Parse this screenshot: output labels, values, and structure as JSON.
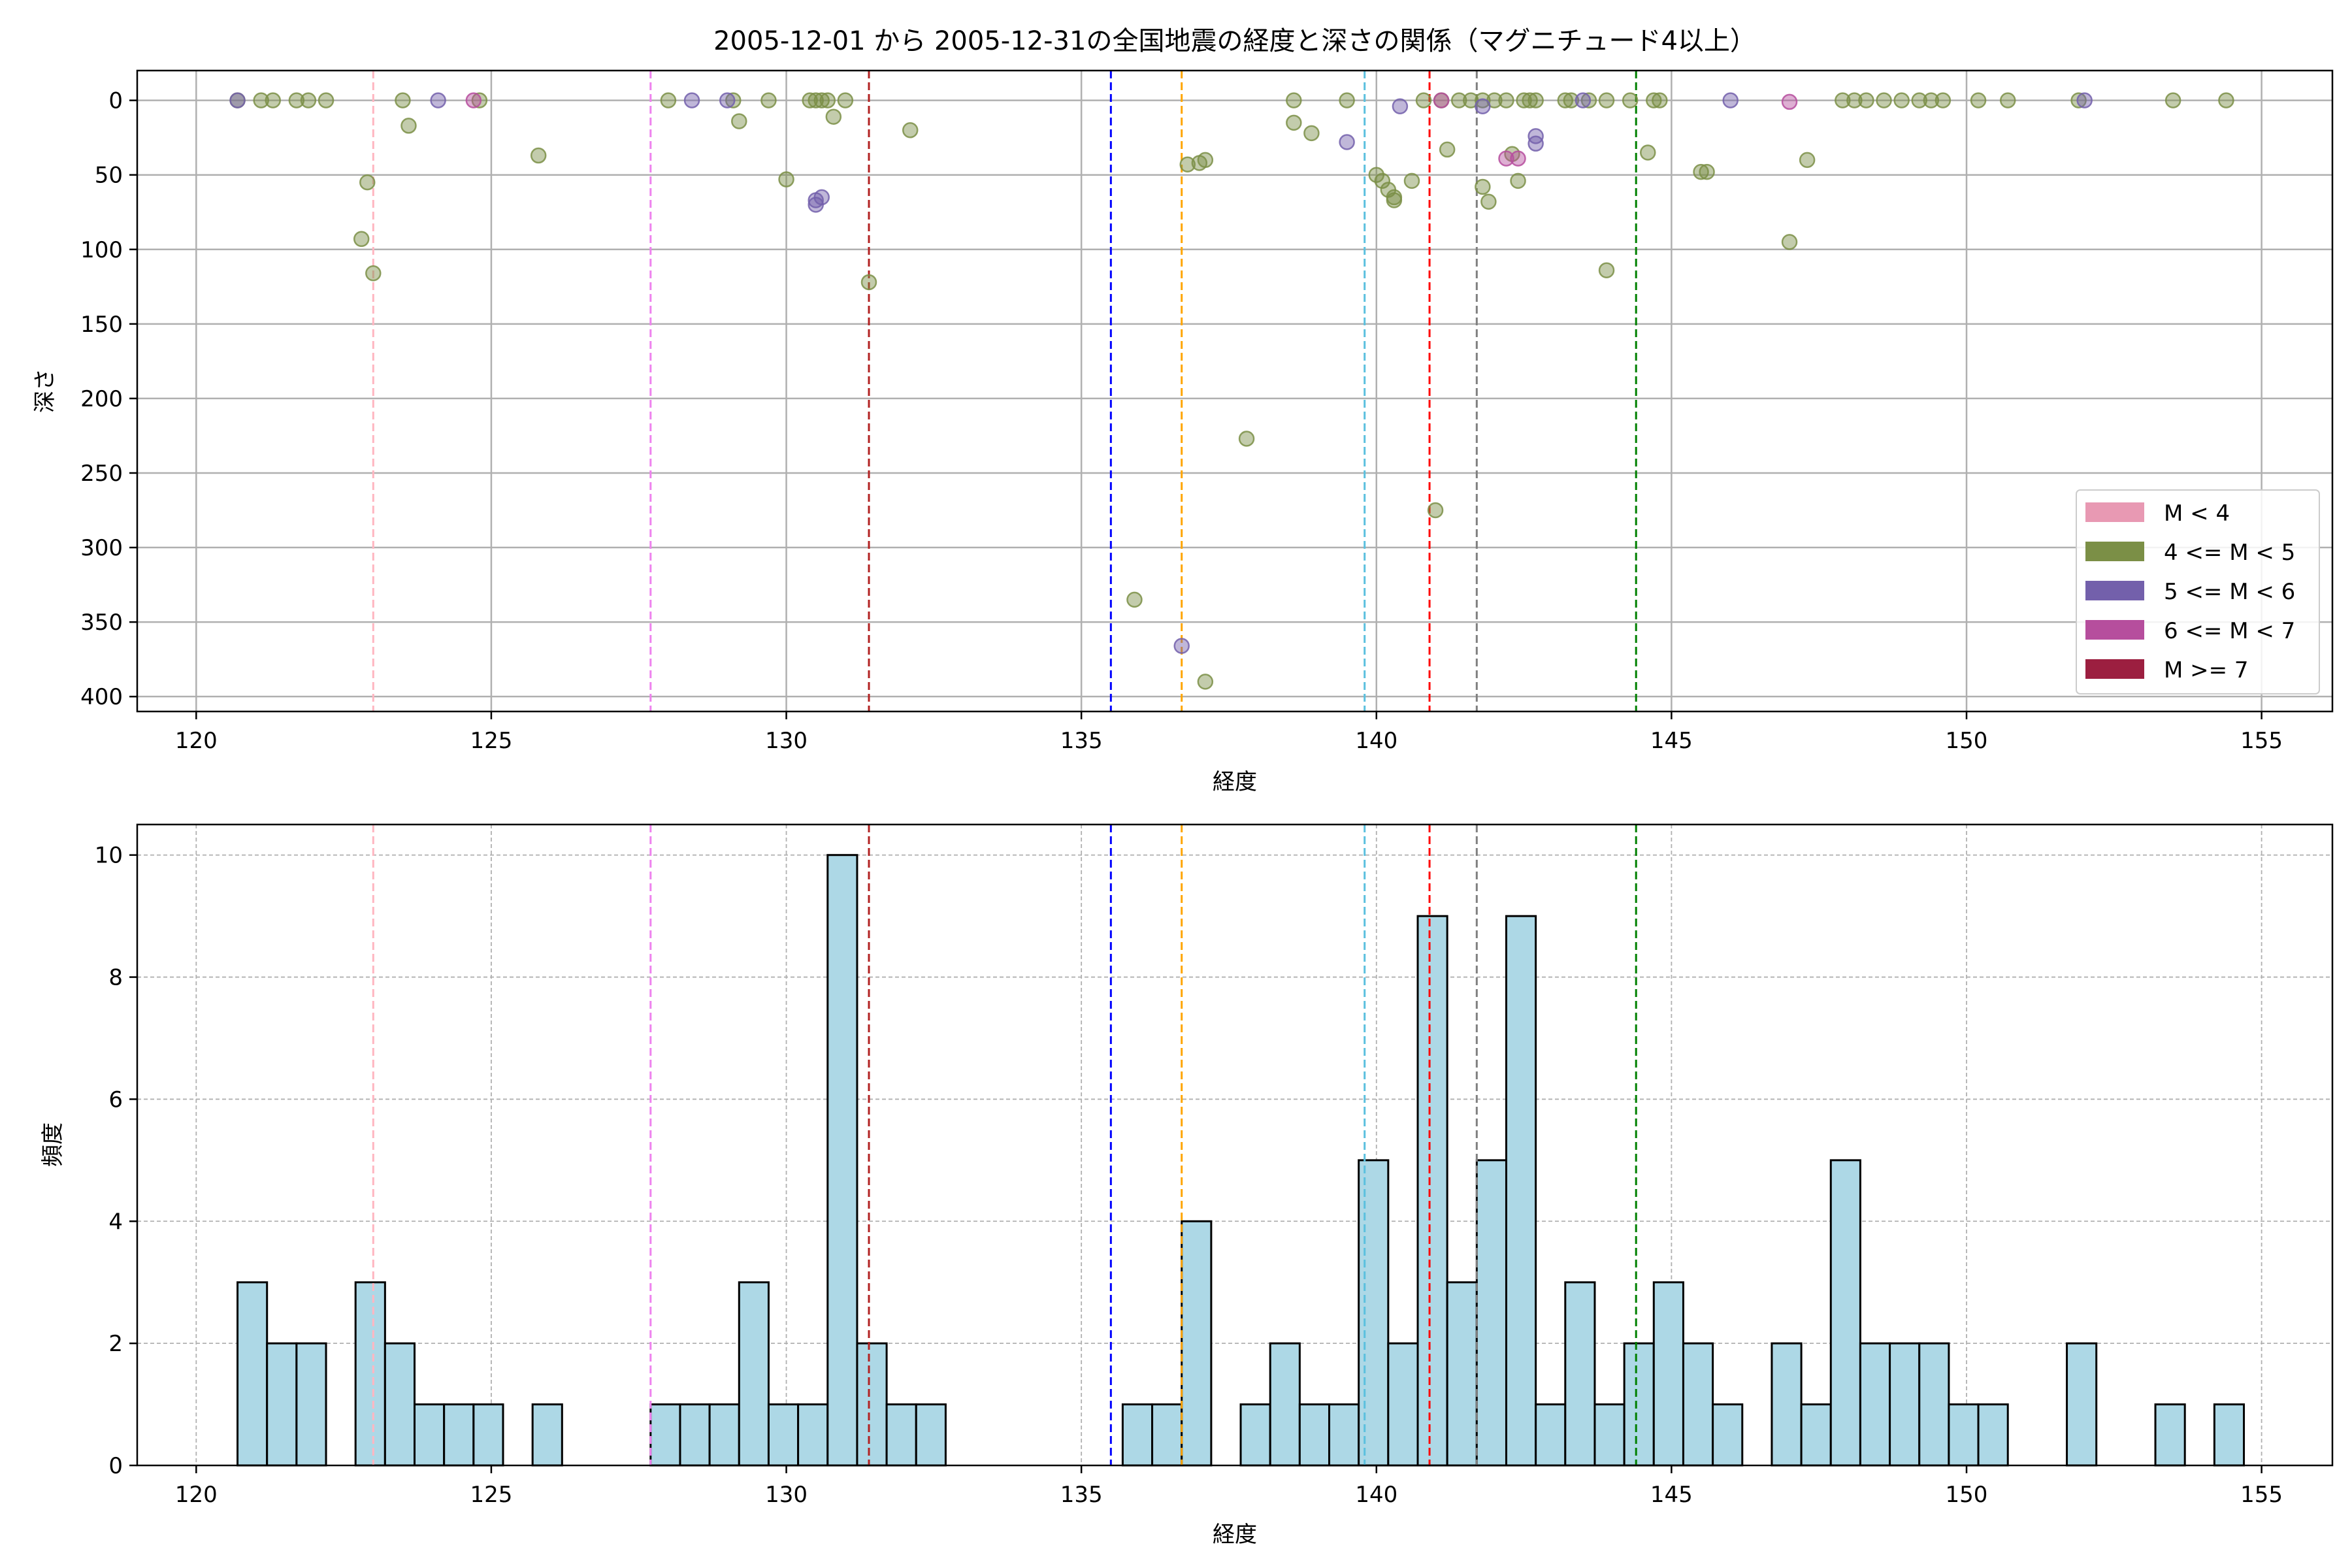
{
  "chart_data": [
    {
      "type": "scatter",
      "title": "2005-12-01 から 2005-12-31の全国地震の経度と深さの関係（マグニチュード4以上）",
      "xlabel": "経度",
      "ylabel": "深さ",
      "xlim": [
        119,
        156.2
      ],
      "ylim": [
        410,
        -20
      ],
      "y_inverted": true,
      "x_ticks": [
        120,
        125,
        130,
        135,
        140,
        145,
        150,
        155
      ],
      "y_ticks": [
        0,
        50,
        100,
        150,
        200,
        250,
        300,
        350,
        400
      ],
      "grid": true,
      "legend_position": "lower-right",
      "legend": [
        {
          "label": "M < 4",
          "color": "#e899b3"
        },
        {
          "label": "4 <= M < 5",
          "color": "#7b8f46"
        },
        {
          "label": "5 <= M < 6",
          "color": "#7360ab"
        },
        {
          "label": "6 <= M < 7",
          "color": "#b64e9d"
        },
        {
          "label": "M >= 7",
          "color": "#9c1f40"
        }
      ],
      "reference_lines": [
        {
          "x": 123.0,
          "color": "#ffb6c1"
        },
        {
          "x": 127.7,
          "color": "#ee82ee"
        },
        {
          "x": 131.4,
          "color": "#b22222"
        },
        {
          "x": 135.5,
          "color": "#0000ff"
        },
        {
          "x": 136.7,
          "color": "#ffa500"
        },
        {
          "x": 139.8,
          "color": "#5bc0de"
        },
        {
          "x": 140.9,
          "color": "#ff0000"
        },
        {
          "x": 141.7,
          "color": "#808080"
        },
        {
          "x": 144.4,
          "color": "#008000"
        }
      ],
      "series": [
        {
          "name": "4 <= M < 5",
          "color": "#7b8f46",
          "points": [
            [
              120.7,
              0
            ],
            [
              121.1,
              0
            ],
            [
              121.3,
              0
            ],
            [
              121.7,
              0
            ],
            [
              121.9,
              0
            ],
            [
              122.2,
              0
            ],
            [
              122.8,
              93
            ],
            [
              122.9,
              55
            ],
            [
              123.0,
              116
            ],
            [
              123.5,
              0
            ],
            [
              123.6,
              17
            ],
            [
              124.8,
              0
            ],
            [
              125.8,
              37
            ],
            [
              128.0,
              0
            ],
            [
              129.1,
              0
            ],
            [
              129.2,
              14
            ],
            [
              129.7,
              0
            ],
            [
              130.0,
              53
            ],
            [
              130.4,
              0
            ],
            [
              130.5,
              0
            ],
            [
              130.6,
              0
            ],
            [
              130.7,
              0
            ],
            [
              130.8,
              11
            ],
            [
              131.0,
              0
            ],
            [
              131.4,
              122
            ],
            [
              132.1,
              20
            ],
            [
              135.9,
              335
            ],
            [
              136.8,
              43
            ],
            [
              137.0,
              42
            ],
            [
              137.1,
              40
            ],
            [
              137.1,
              390
            ],
            [
              137.8,
              227
            ],
            [
              138.6,
              0
            ],
            [
              138.6,
              15
            ],
            [
              138.9,
              22
            ],
            [
              139.5,
              0
            ],
            [
              140.0,
              50
            ],
            [
              140.1,
              54
            ],
            [
              140.2,
              60
            ],
            [
              140.3,
              67
            ],
            [
              140.3,
              65
            ],
            [
              140.6,
              54
            ],
            [
              140.8,
              0
            ],
            [
              141.0,
              275
            ],
            [
              141.1,
              0
            ],
            [
              141.2,
              33
            ],
            [
              141.4,
              0
            ],
            [
              141.6,
              0
            ],
            [
              141.8,
              0
            ],
            [
              141.8,
              58
            ],
            [
              141.9,
              68
            ],
            [
              142.0,
              0
            ],
            [
              142.2,
              0
            ],
            [
              142.3,
              36
            ],
            [
              142.5,
              0
            ],
            [
              142.4,
              54
            ],
            [
              142.6,
              0
            ],
            [
              142.7,
              0
            ],
            [
              143.2,
              0
            ],
            [
              143.3,
              0
            ],
            [
              143.6,
              0
            ],
            [
              143.9,
              0
            ],
            [
              143.9,
              114
            ],
            [
              144.3,
              0
            ],
            [
              144.6,
              35
            ],
            [
              144.7,
              0
            ],
            [
              144.8,
              0
            ],
            [
              145.5,
              48
            ],
            [
              145.6,
              48
            ],
            [
              147.0,
              95
            ],
            [
              147.3,
              40
            ],
            [
              147.9,
              0
            ],
            [
              148.1,
              0
            ],
            [
              148.3,
              0
            ],
            [
              148.6,
              0
            ],
            [
              148.9,
              0
            ],
            [
              149.2,
              0
            ],
            [
              149.4,
              0
            ],
            [
              149.6,
              0
            ],
            [
              150.2,
              0
            ],
            [
              150.7,
              0
            ],
            [
              151.9,
              0
            ],
            [
              153.5,
              0
            ],
            [
              154.4,
              0
            ]
          ]
        },
        {
          "name": "5 <= M < 6",
          "color": "#7360ab",
          "points": [
            [
              120.7,
              0
            ],
            [
              124.1,
              0
            ],
            [
              128.4,
              0
            ],
            [
              129.0,
              0
            ],
            [
              130.5,
              67
            ],
            [
              130.5,
              70
            ],
            [
              130.6,
              65
            ],
            [
              136.7,
              366
            ],
            [
              139.5,
              28
            ],
            [
              140.4,
              4
            ],
            [
              141.8,
              4
            ],
            [
              142.7,
              29
            ],
            [
              142.7,
              24
            ],
            [
              143.5,
              0
            ],
            [
              146.0,
              0
            ],
            [
              152.0,
              0
            ]
          ]
        },
        {
          "name": "6 <= M < 7",
          "color": "#b64e9d",
          "points": [
            [
              124.7,
              0
            ],
            [
              141.1,
              0
            ],
            [
              142.2,
              39
            ],
            [
              142.4,
              39
            ],
            [
              147.0,
              1
            ]
          ]
        }
      ]
    },
    {
      "type": "bar",
      "title": "",
      "xlabel": "経度",
      "ylabel": "頻度",
      "xlim": [
        119,
        156.2
      ],
      "ylim": [
        0,
        10.5
      ],
      "x_ticks": [
        120,
        125,
        130,
        135,
        140,
        145,
        150,
        155
      ],
      "y_ticks": [
        0,
        2,
        4,
        6,
        8,
        10
      ],
      "grid": true,
      "bar_color": "#add8e6",
      "bin_start": 120.7,
      "bin_width": 0.5,
      "counts": [
        3,
        2,
        2,
        0,
        3,
        2,
        1,
        1,
        1,
        0,
        1,
        0,
        0,
        0,
        1,
        1,
        1,
        3,
        1,
        1,
        10,
        2,
        1,
        1,
        0,
        0,
        0,
        0,
        0,
        0,
        1,
        1,
        4,
        0,
        1,
        2,
        1,
        1,
        5,
        2,
        9,
        3,
        5,
        9,
        1,
        3,
        1,
        2,
        3,
        2,
        1,
        0,
        2,
        1,
        5,
        2,
        2,
        2,
        1,
        1,
        0,
        0,
        2,
        0,
        0,
        1,
        0,
        1
      ],
      "reference_lines": [
        {
          "x": 123.0,
          "color": "#ffb6c1"
        },
        {
          "x": 127.7,
          "color": "#ee82ee"
        },
        {
          "x": 131.4,
          "color": "#b22222"
        },
        {
          "x": 135.5,
          "color": "#0000ff"
        },
        {
          "x": 136.7,
          "color": "#ffa500"
        },
        {
          "x": 139.8,
          "color": "#5bc0de"
        },
        {
          "x": 140.9,
          "color": "#ff0000"
        },
        {
          "x": 141.7,
          "color": "#808080"
        },
        {
          "x": 144.4,
          "color": "#008000"
        }
      ]
    }
  ]
}
